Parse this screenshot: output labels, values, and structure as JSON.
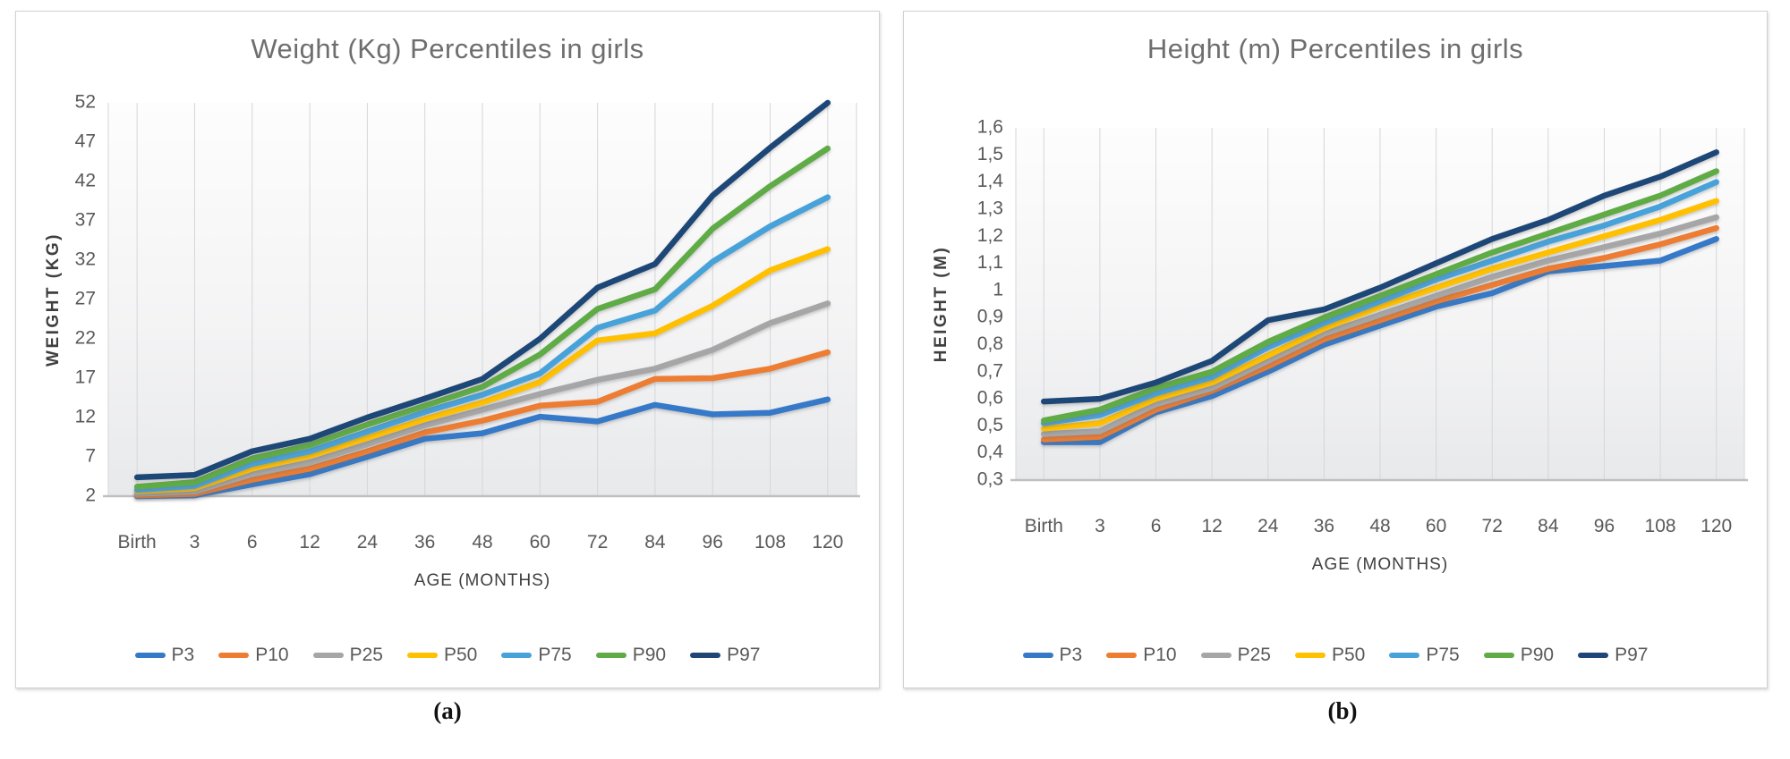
{
  "page": {
    "captions": [
      "(a)",
      "(b)"
    ]
  },
  "palette": {
    "title_text": "#6E6E6E",
    "tick_text": "#595959",
    "axis_title_text": "#3F3F3F",
    "gridline": "#D4D6D8",
    "axis_line": "#BDBFC1",
    "plot_fill_top": "#FDFDFD",
    "plot_fill_mid": "#F4F4F5",
    "plot_fill_bottom": "#E8E9EB",
    "panel_border": "#D2D2D2"
  },
  "chart_data": [
    {
      "type": "line",
      "title": "Weight (Kg) Percentiles in girls",
      "xlabel": "AGE (MONTHS)",
      "ylabel": "WEIGHT (KG)",
      "x_categories": [
        "Birth",
        "3",
        "6",
        "12",
        "24",
        "36",
        "48",
        "60",
        "72",
        "84",
        "96",
        "108",
        "120"
      ],
      "ylim": [
        2,
        52
      ],
      "yticks": [
        2,
        7,
        12,
        17,
        22,
        27,
        32,
        37,
        42,
        47,
        52
      ],
      "ytick_labels": [
        "2",
        "7",
        "12",
        "17",
        "22",
        "27",
        "32",
        "37",
        "42",
        "47",
        "52"
      ],
      "grid": "vertical-only",
      "legend_position": "bottom",
      "series": [
        {
          "name": "P3",
          "color": "#3579C8",
          "values": [
            2.0,
            2.1,
            3.5,
            4.8,
            7.0,
            9.3,
            10.0,
            12.1,
            11.5,
            13.6,
            12.4,
            12.6,
            14.3
          ]
        },
        {
          "name": "P10",
          "color": "#ED7D31",
          "values": [
            2.1,
            2.3,
            4.1,
            5.5,
            7.7,
            10.1,
            11.6,
            13.5,
            14.0,
            16.9,
            17.0,
            18.2,
            20.3
          ]
        },
        {
          "name": "P25",
          "color": "#A6A6A6",
          "values": [
            2.3,
            2.6,
            4.8,
            6.3,
            8.6,
            11.0,
            13.0,
            15.0,
            16.8,
            18.2,
            20.6,
            24.0,
            26.5
          ]
        },
        {
          "name": "P50",
          "color": "#FFC000",
          "values": [
            2.6,
            3.0,
            5.5,
            7.1,
            9.4,
            11.8,
            13.9,
            16.5,
            21.8,
            22.7,
            26.2,
            30.7,
            33.4
          ]
        },
        {
          "name": "P75",
          "color": "#46A2D9",
          "values": [
            2.8,
            3.3,
            6.1,
            7.7,
            10.2,
            12.7,
            14.9,
            17.6,
            23.4,
            25.6,
            31.8,
            36.3,
            40.0
          ]
        },
        {
          "name": "P90",
          "color": "#5FAB45",
          "values": [
            3.2,
            3.8,
            6.8,
            8.5,
            11.1,
            13.5,
            15.9,
            20.0,
            25.8,
            28.3,
            36.0,
            41.4,
            46.2
          ]
        },
        {
          "name": "P97",
          "color": "#1F4677",
          "values": [
            4.4,
            4.7,
            7.7,
            9.3,
            12.0,
            14.4,
            16.9,
            22.0,
            28.5,
            31.5,
            40.2,
            46.3,
            52.0
          ]
        }
      ]
    },
    {
      "type": "line",
      "title": "Height (m) Percentiles in girls",
      "xlabel": "AGE (MONTHS)",
      "ylabel": "HEIGHT (M)",
      "x_categories": [
        "Birth",
        "3",
        "6",
        "12",
        "24",
        "36",
        "48",
        "60",
        "72",
        "84",
        "96",
        "108",
        "120"
      ],
      "ylim": [
        0.3,
        1.6
      ],
      "yticks": [
        0.3,
        0.4,
        0.5,
        0.6,
        0.7,
        0.8,
        0.9,
        1.0,
        1.1,
        1.2,
        1.3,
        1.4,
        1.5,
        1.6
      ],
      "ytick_labels": [
        "0,3",
        "0,4",
        "0,5",
        "0,6",
        "0,7",
        "0,8",
        "0,9",
        "1",
        "1,1",
        "1,2",
        "1,3",
        "1,4",
        "1,5",
        "1,6"
      ],
      "grid": "vertical-only",
      "legend_position": "bottom",
      "series": [
        {
          "name": "P3",
          "color": "#3579C8",
          "values": [
            0.44,
            0.44,
            0.55,
            0.61,
            0.7,
            0.8,
            0.87,
            0.94,
            0.99,
            1.07,
            1.09,
            1.11,
            1.19
          ]
        },
        {
          "name": "P10",
          "color": "#ED7D31",
          "values": [
            0.45,
            0.46,
            0.56,
            0.63,
            0.72,
            0.82,
            0.89,
            0.96,
            1.02,
            1.08,
            1.12,
            1.17,
            1.23
          ]
        },
        {
          "name": "P25",
          "color": "#A6A6A6",
          "values": [
            0.47,
            0.48,
            0.58,
            0.64,
            0.74,
            0.84,
            0.91,
            0.98,
            1.05,
            1.11,
            1.16,
            1.21,
            1.27
          ]
        },
        {
          "name": "P50",
          "color": "#FFC000",
          "values": [
            0.49,
            0.51,
            0.6,
            0.66,
            0.76,
            0.86,
            0.94,
            1.01,
            1.08,
            1.14,
            1.2,
            1.26,
            1.33
          ]
        },
        {
          "name": "P75",
          "color": "#46A2D9",
          "values": [
            0.51,
            0.54,
            0.62,
            0.68,
            0.79,
            0.88,
            0.96,
            1.04,
            1.11,
            1.18,
            1.24,
            1.31,
            1.4
          ]
        },
        {
          "name": "P90",
          "color": "#5FAB45",
          "values": [
            0.52,
            0.56,
            0.64,
            0.7,
            0.81,
            0.9,
            0.98,
            1.06,
            1.14,
            1.21,
            1.28,
            1.35,
            1.44
          ]
        },
        {
          "name": "P97",
          "color": "#1F4677",
          "values": [
            0.59,
            0.6,
            0.66,
            0.74,
            0.89,
            0.93,
            1.01,
            1.1,
            1.19,
            1.26,
            1.35,
            1.42,
            1.51
          ]
        }
      ]
    }
  ]
}
